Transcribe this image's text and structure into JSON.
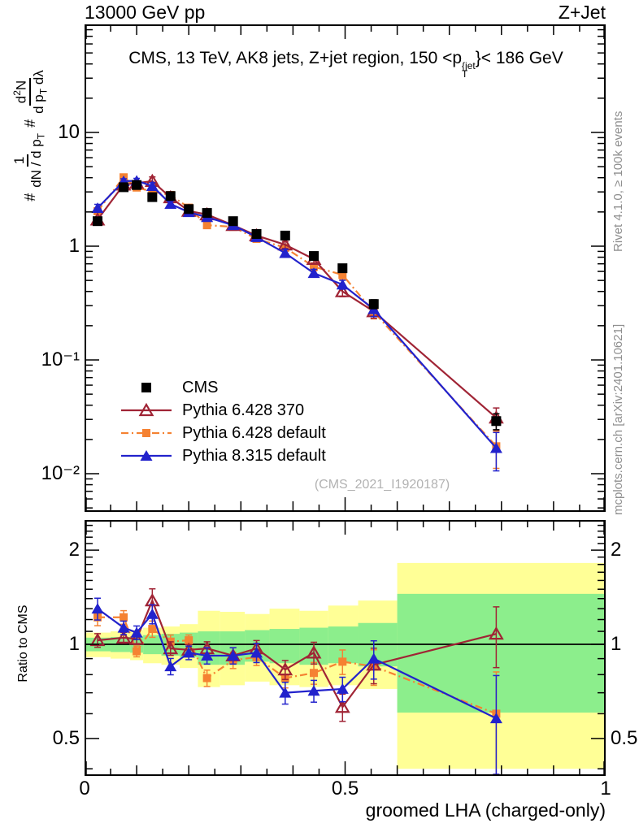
{
  "header": {
    "left": "13000 GeV pp",
    "right": "Z+Jet"
  },
  "panel_title": {
    "prefix": "CMS, 13 TeV, AK8 jets, Z+jet region, 150 <p",
    "sup": "{jet",
    "sub": "T",
    "suffix": "}< 186 GeV"
  },
  "ylabel": {
    "hash1": "#",
    "f1num": "1",
    "f1den": "dN / d p",
    "f1densub": "T",
    "hash2": "#",
    "f2num_a": "d",
    "f2num_sup": "2",
    "f2num_b": "N",
    "f2den_a": "d p",
    "f2densub": "T",
    "f2den_b": " dλ"
  },
  "watermark": "(CMS_2021_I1920187)",
  "side_notes": {
    "top": "Rivet 4.1.0, ≥ 100k events",
    "bottom": "mcplots.cern.ch [arXiv:2401.10621]"
  },
  "ratio_label": "Ratio to CMS",
  "xaxis_title": "groomed LHA (charged-only)",
  "colors": {
    "cms": "#000000",
    "pythia6_370": "#a02435",
    "pythia6_default": "#f58232",
    "pythia8_default": "#2222cc",
    "band_yellow": "#ffff96",
    "band_green": "#8cee8c",
    "reference_line": "#000000",
    "side_text": "#8f8f8f",
    "watermark_text": "#b2b2b2"
  },
  "chart_data": {
    "type": "line",
    "title": "CMS, 13 TeV, AK8 jets, Z+jet region, 150 < pT{jet} < 186 GeV",
    "xlabel": "groomed LHA (charged-only)",
    "ylabel": "# 1/(dN/dpT) # d²N/(dpT dλ)",
    "xlim": [
      0,
      1
    ],
    "main_ylim": [
      0.0046,
      89
    ],
    "yscale": "log",
    "legend_position": "inside-left",
    "x": [
      0.025,
      0.075,
      0.1,
      0.13,
      0.165,
      0.2,
      0.235,
      0.285,
      0.33,
      0.385,
      0.44,
      0.495,
      0.555,
      0.79
    ],
    "bin_edges": [
      0,
      0.05,
      0.0875,
      0.1125,
      0.1475,
      0.1825,
      0.2175,
      0.26,
      0.3075,
      0.355,
      0.4125,
      0.4675,
      0.525,
      0.6,
      1.0
    ],
    "series": [
      {
        "name": "CMS",
        "role": "data",
        "marker": "square",
        "fill": "filled",
        "color": "#000000",
        "values": [
          1.66,
          3.3,
          3.45,
          2.7,
          2.76,
          2.12,
          1.96,
          1.66,
          1.28,
          1.24,
          0.82,
          0.64,
          0.31,
          0.029
        ],
        "err_frac": [
          0.06,
          0.05,
          0.05,
          0.05,
          0.05,
          0.05,
          0.05,
          0.05,
          0.06,
          0.06,
          0.07,
          0.07,
          0.09,
          0.16
        ]
      },
      {
        "name": "Pythia 6.428 370",
        "role": "mc",
        "marker": "triangle",
        "fill": "open",
        "line": "solid",
        "color": "#a02435",
        "values": [
          1.71,
          3.47,
          3.59,
          3.73,
          2.68,
          2.04,
          1.9,
          1.53,
          1.24,
          1.03,
          0.77,
          0.4,
          0.267,
          0.031
        ],
        "ratio_to_cms": [
          1.03,
          1.05,
          1.04,
          1.38,
          0.97,
          0.96,
          0.97,
          0.92,
          0.97,
          0.83,
          0.94,
          0.63,
          0.86,
          1.08
        ],
        "err_frac": [
          0.05,
          0.04,
          0.04,
          0.09,
          0.05,
          0.04,
          0.05,
          0.06,
          0.06,
          0.07,
          0.08,
          0.1,
          0.13,
          0.22
        ]
      },
      {
        "name": "Pythia 6.428 default",
        "role": "mc",
        "marker": "square",
        "fill": "filled",
        "line": "dashdot",
        "color": "#f58232",
        "values": [
          2.03,
          4.03,
          3.28,
          3.02,
          2.82,
          2.18,
          1.53,
          1.48,
          1.16,
          0.97,
          0.66,
          0.56,
          0.264,
          0.0174
        ],
        "ratio_to_cms": [
          1.22,
          1.22,
          0.95,
          1.12,
          1.02,
          1.03,
          0.78,
          0.89,
          0.91,
          0.78,
          0.81,
          0.88,
          0.85,
          0.6
        ],
        "err_frac": [
          0.06,
          0.05,
          0.04,
          0.06,
          0.05,
          0.04,
          0.06,
          0.06,
          0.06,
          0.07,
          0.08,
          0.09,
          0.13,
          0.36
        ]
      },
      {
        "name": "Pythia 8.315 default",
        "role": "mc",
        "marker": "triangle",
        "fill": "filled",
        "line": "solid",
        "color": "#2222cc",
        "values": [
          2.16,
          3.73,
          3.76,
          3.38,
          2.35,
          1.99,
          1.8,
          1.53,
          1.2,
          0.87,
          0.58,
          0.46,
          0.279,
          0.0168
        ],
        "ratio_to_cms": [
          1.3,
          1.13,
          1.09,
          1.25,
          0.85,
          0.94,
          0.92,
          0.92,
          0.94,
          0.7,
          0.71,
          0.72,
          0.9,
          0.58
        ],
        "err_frac": [
          0.08,
          0.05,
          0.05,
          0.07,
          0.06,
          0.05,
          0.06,
          0.06,
          0.07,
          0.08,
          0.08,
          0.09,
          0.14,
          0.37
        ]
      }
    ],
    "main_yticks": {
      "values": [
        10,
        1,
        0.1,
        0.01
      ],
      "labels": [
        "10",
        "1",
        "10⁻¹",
        "10⁻²"
      ]
    },
    "xticks": {
      "values": [
        0,
        0.5,
        1
      ],
      "labels": [
        "0",
        "0.5",
        "1"
      ]
    },
    "ratio_panel": {
      "ylabel": "Ratio to CMS",
      "ylim": [
        0.37,
        2.45
      ],
      "yscale": "log",
      "yticks": {
        "values": [
          2,
          1,
          0.5
        ],
        "labels": [
          "2",
          "1",
          "0.5"
        ]
      },
      "reference": 1,
      "band_yellow": [
        [
          0.91,
          1.09
        ],
        [
          0.9,
          1.1
        ],
        [
          0.89,
          1.11
        ],
        [
          0.87,
          1.13
        ],
        [
          0.86,
          1.14
        ],
        [
          0.84,
          1.16
        ],
        [
          0.73,
          1.28
        ],
        [
          0.74,
          1.27
        ],
        [
          0.76,
          1.25
        ],
        [
          0.74,
          1.3
        ],
        [
          0.73,
          1.28
        ],
        [
          0.74,
          1.33
        ],
        [
          0.72,
          1.38
        ],
        [
          0.4,
          1.82
        ]
      ],
      "band_green": [
        [
          0.95,
          1.05
        ],
        [
          0.945,
          1.055
        ],
        [
          0.94,
          1.06
        ],
        [
          0.93,
          1.07
        ],
        [
          0.92,
          1.08
        ],
        [
          0.91,
          1.09
        ],
        [
          0.86,
          1.1
        ],
        [
          0.86,
          1.1
        ],
        [
          0.88,
          1.11
        ],
        [
          0.87,
          1.12
        ],
        [
          0.86,
          1.13
        ],
        [
          0.87,
          1.14
        ],
        [
          0.85,
          1.17
        ],
        [
          0.605,
          1.45
        ]
      ]
    }
  }
}
